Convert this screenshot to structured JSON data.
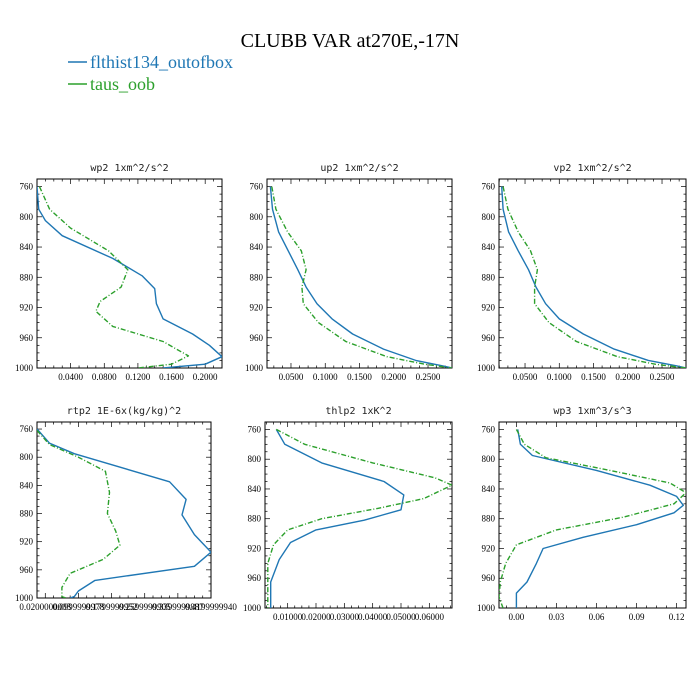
{
  "figure": {
    "title": "CLUBB VAR at270E,-17N",
    "legend": [
      {
        "label": "flthist134_outofbox",
        "color": "#1f77b4",
        "style": "solid"
      },
      {
        "label": "taus_oob",
        "color": "#2ca02c",
        "style": "dashdot"
      }
    ]
  },
  "chart_data": [
    {
      "type": "line",
      "title": "wp2  1xm^2/s^2",
      "xlim": [
        0.0,
        0.22
      ],
      "ylim": [
        1000,
        750
      ],
      "y_inverted": true,
      "xticks": [
        0.04,
        0.08,
        0.12,
        0.16,
        0.2
      ],
      "xtick_labels": [
        "0.0400",
        "0.0800",
        "0.1200",
        "0.1600",
        "0.2000"
      ],
      "yticks": [
        760,
        800,
        840,
        880,
        920,
        960,
        1000
      ],
      "series": [
        {
          "name": "flthist134_outofbox",
          "points": [
            [
              0.0,
              760
            ],
            [
              0.002,
              790
            ],
            [
              0.01,
              805
            ],
            [
              0.03,
              825
            ],
            [
              0.09,
              855
            ],
            [
              0.125,
              878
            ],
            [
              0.14,
              895
            ],
            [
              0.142,
              915
            ],
            [
              0.15,
              935
            ],
            [
              0.185,
              955
            ],
            [
              0.205,
              970
            ],
            [
              0.22,
              985
            ],
            [
              0.2,
              995
            ],
            [
              0.15,
              1000
            ]
          ]
        },
        {
          "name": "taus_oob",
          "points": [
            [
              0.003,
              760
            ],
            [
              0.015,
              790
            ],
            [
              0.04,
              815
            ],
            [
              0.085,
              845
            ],
            [
              0.108,
              870
            ],
            [
              0.1,
              893
            ],
            [
              0.075,
              912
            ],
            [
              0.07,
              925
            ],
            [
              0.09,
              945
            ],
            [
              0.15,
              965
            ],
            [
              0.18,
              984
            ],
            [
              0.16,
              995
            ],
            [
              0.12,
              1000
            ]
          ]
        }
      ]
    },
    {
      "type": "line",
      "title": "up2  1xm^2/s^2",
      "xlim": [
        0.015,
        0.285
      ],
      "ylim": [
        1000,
        750
      ],
      "y_inverted": true,
      "xticks": [
        0.05,
        0.1,
        0.15,
        0.2,
        0.25
      ],
      "xtick_labels": [
        "0.0500",
        "0.1000",
        "0.1500",
        "0.2000",
        "0.2500"
      ],
      "yticks": [
        760,
        800,
        840,
        880,
        920,
        960,
        1000
      ],
      "series": [
        {
          "name": "flthist134_outofbox",
          "points": [
            [
              0.02,
              760
            ],
            [
              0.023,
              790
            ],
            [
              0.032,
              820
            ],
            [
              0.046,
              845
            ],
            [
              0.06,
              870
            ],
            [
              0.072,
              893
            ],
            [
              0.088,
              915
            ],
            [
              0.11,
              935
            ],
            [
              0.14,
              955
            ],
            [
              0.185,
              975
            ],
            [
              0.232,
              990
            ],
            [
              0.27,
              997
            ],
            [
              0.285,
              1000
            ]
          ]
        },
        {
          "name": "taus_oob",
          "points": [
            [
              0.022,
              760
            ],
            [
              0.028,
              790
            ],
            [
              0.045,
              820
            ],
            [
              0.065,
              845
            ],
            [
              0.072,
              870
            ],
            [
              0.066,
              893
            ],
            [
              0.068,
              915
            ],
            [
              0.09,
              940
            ],
            [
              0.13,
              965
            ],
            [
              0.19,
              985
            ],
            [
              0.245,
              995
            ],
            [
              0.285,
              1000
            ]
          ]
        }
      ]
    },
    {
      "type": "line",
      "title": "vp2  1xm^2/s^2",
      "xlim": [
        0.012,
        0.285
      ],
      "ylim": [
        1000,
        750
      ],
      "y_inverted": true,
      "xticks": [
        0.05,
        0.1,
        0.15,
        0.2,
        0.25
      ],
      "xtick_labels": [
        "0.0500",
        "0.1000",
        "0.1500",
        "0.2000",
        "0.2500"
      ],
      "yticks": [
        760,
        800,
        840,
        880,
        920,
        960,
        1000
      ],
      "series": [
        {
          "name": "flthist134_outofbox",
          "points": [
            [
              0.016,
              760
            ],
            [
              0.018,
              790
            ],
            [
              0.026,
              820
            ],
            [
              0.04,
              845
            ],
            [
              0.055,
              870
            ],
            [
              0.066,
              893
            ],
            [
              0.08,
              915
            ],
            [
              0.1,
              935
            ],
            [
              0.135,
              955
            ],
            [
              0.18,
              975
            ],
            [
              0.23,
              990
            ],
            [
              0.27,
              997
            ],
            [
              0.285,
              1000
            ]
          ]
        },
        {
          "name": "taus_oob",
          "points": [
            [
              0.018,
              760
            ],
            [
              0.025,
              790
            ],
            [
              0.04,
              820
            ],
            [
              0.058,
              845
            ],
            [
              0.068,
              870
            ],
            [
              0.064,
              893
            ],
            [
              0.064,
              915
            ],
            [
              0.085,
              940
            ],
            [
              0.125,
              965
            ],
            [
              0.185,
              985
            ],
            [
              0.24,
              995
            ],
            [
              0.285,
              1000
            ]
          ]
        }
      ]
    },
    {
      "type": "line",
      "title": "rtp2  1E-6x(kg/kg)^2",
      "xlim": [
        0.0,
        0.42
      ],
      "ylim": [
        1000,
        750
      ],
      "y_inverted": true,
      "xticks": [
        0.02,
        0.1,
        0.18,
        0.26,
        0.34,
        0.42
      ],
      "xtick_labels": [
        "0.0200000003",
        "0.0999999978",
        "0.1799999952",
        "0.2599999905",
        "0.3399999887",
        "0.4199999940"
      ],
      "yticks": [
        760,
        800,
        840,
        880,
        920,
        960,
        1000
      ],
      "series": [
        {
          "name": "flthist134_outofbox",
          "points": [
            [
              0.0,
              760
            ],
            [
              0.03,
              780
            ],
            [
              0.09,
              795
            ],
            [
              0.32,
              835
            ],
            [
              0.36,
              860
            ],
            [
              0.35,
              882
            ],
            [
              0.38,
              910
            ],
            [
              0.42,
              935
            ],
            [
              0.38,
              955
            ],
            [
              0.14,
              975
            ],
            [
              0.1,
              990
            ],
            [
              0.09,
              998
            ],
            [
              0.08,
              1000
            ]
          ]
        },
        {
          "name": "taus_oob",
          "points": [
            [
              0.0,
              762
            ],
            [
              0.03,
              782
            ],
            [
              0.1,
              800
            ],
            [
              0.165,
              820
            ],
            [
              0.175,
              850
            ],
            [
              0.17,
              880
            ],
            [
              0.19,
              905
            ],
            [
              0.2,
              925
            ],
            [
              0.16,
              945
            ],
            [
              0.08,
              965
            ],
            [
              0.06,
              985
            ],
            [
              0.06,
              998
            ],
            [
              0.07,
              1000
            ]
          ]
        }
      ]
    },
    {
      "type": "line",
      "title": "thlp2  1xK^2",
      "xlim": [
        0.002,
        0.068
      ],
      "ylim": [
        1000,
        750
      ],
      "y_inverted": true,
      "xticks": [
        0.01,
        0.02,
        0.03,
        0.04,
        0.05,
        0.06
      ],
      "xtick_labels": [
        "0.01000",
        "0.02000",
        "0.03000",
        "0.04000",
        "0.05000",
        "0.06000"
      ],
      "yticks": [
        760,
        800,
        840,
        880,
        920,
        960,
        1000
      ],
      "series": [
        {
          "name": "flthist134_outofbox",
          "points": [
            [
              0.006,
              760
            ],
            [
              0.009,
              780
            ],
            [
              0.022,
              805
            ],
            [
              0.044,
              830
            ],
            [
              0.051,
              848
            ],
            [
              0.05,
              868
            ],
            [
              0.037,
              882
            ],
            [
              0.02,
              895
            ],
            [
              0.011,
              912
            ],
            [
              0.007,
              935
            ],
            [
              0.004,
              965
            ],
            [
              0.004,
              1000
            ]
          ]
        },
        {
          "name": "taus_oob",
          "points": [
            [
              0.006,
              760
            ],
            [
              0.016,
              780
            ],
            [
              0.04,
              805
            ],
            [
              0.062,
              825
            ],
            [
              0.068,
              835
            ],
            [
              0.058,
              853
            ],
            [
              0.042,
              866
            ],
            [
              0.022,
              880
            ],
            [
              0.01,
              895
            ],
            [
              0.005,
              915
            ],
            [
              0.003,
              940
            ],
            [
              0.003,
              970
            ],
            [
              0.003,
              1000
            ]
          ]
        }
      ]
    },
    {
      "type": "line",
      "title": "wp3  1xm^3/s^3",
      "xlim": [
        -0.013,
        0.127
      ],
      "ylim": [
        1000,
        750
      ],
      "y_inverted": true,
      "xticks": [
        0.0,
        0.03,
        0.06,
        0.09,
        0.12
      ],
      "xtick_labels": [
        "0.00",
        "0.03",
        "0.06",
        "0.09",
        "0.12"
      ],
      "yticks": [
        760,
        800,
        840,
        880,
        920,
        960,
        1000
      ],
      "series": [
        {
          "name": "flthist134_outofbox",
          "points": [
            [
              0.001,
              760
            ],
            [
              0.003,
              780
            ],
            [
              0.012,
              795
            ],
            [
              0.06,
              815
            ],
            [
              0.1,
              835
            ],
            [
              0.12,
              850
            ],
            [
              0.125,
              862
            ],
            [
              0.118,
              872
            ],
            [
              0.09,
              888
            ],
            [
              0.05,
              905
            ],
            [
              0.02,
              920
            ],
            [
              0.015,
              940
            ],
            [
              0.008,
              965
            ],
            [
              0.0,
              980
            ],
            [
              0.0,
              1000
            ]
          ]
        },
        {
          "name": "taus_oob",
          "points": [
            [
              0.0,
              760
            ],
            [
              0.006,
              780
            ],
            [
              0.022,
              798
            ],
            [
              0.07,
              815
            ],
            [
              0.115,
              832
            ],
            [
              0.127,
              845
            ],
            [
              0.118,
              860
            ],
            [
              0.08,
              878
            ],
            [
              0.03,
              895
            ],
            [
              0.0,
              915
            ],
            [
              -0.008,
              940
            ],
            [
              -0.012,
              965
            ],
            [
              -0.013,
              985
            ],
            [
              -0.01,
              1000
            ]
          ]
        }
      ]
    }
  ]
}
